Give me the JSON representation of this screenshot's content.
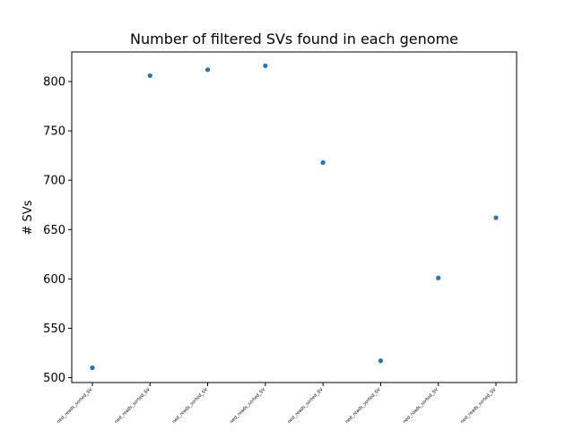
{
  "chart_data": {
    "type": "scatter",
    "title": "Number of filtered SVs found in each genome",
    "xlabel": "",
    "ylabel": "# SVs",
    "categories": [
      "ned_reads_sorted_SV",
      "ned_reads_sorted_SV",
      "ned_reads_sorted_SV",
      "ned_reads_sorted_SV",
      "ned_reads_sorted_SV",
      "ned_reads_sorted_SV",
      "ned_reads_sorted_SV",
      "ned_reads_sorted_SV"
    ],
    "values": [
      510,
      806,
      812,
      816,
      718,
      517,
      601,
      662
    ],
    "ylim": [
      495,
      830
    ],
    "yticks": [
      500,
      550,
      600,
      650,
      700,
      750,
      800
    ],
    "grid": false,
    "color": "#1f77b4"
  }
}
